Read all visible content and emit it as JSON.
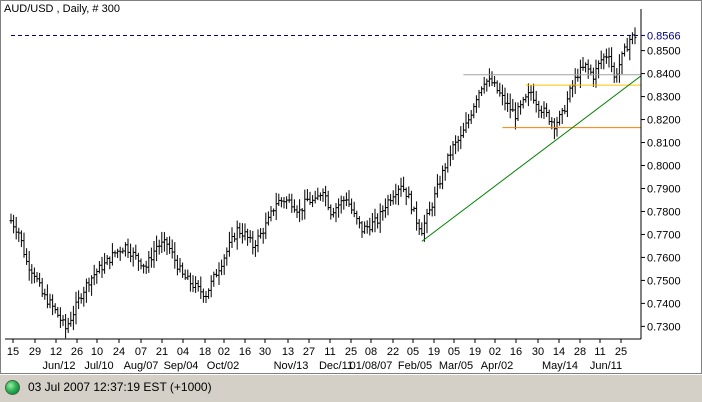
{
  "window": {
    "status_text": "03 Jul 2007 12:37:19  EST (+1000)"
  },
  "colors": {
    "background": "#ffffff",
    "bars": "#000000",
    "trendline": "#008000",
    "support": "#ff8000",
    "resistance": "#ffc000",
    "reference": "#a0a0a0",
    "price_line": "#000080",
    "last_price_text": "#000080"
  },
  "chart_data": {
    "type": "ohlc",
    "title": "AUD/USD , Daily, # 300",
    "last_price": "0.8566",
    "ylim": [
      0.7245,
      0.8655
    ],
    "y_ticks": [
      "0.8500",
      "0.8400",
      "0.8300",
      "0.8200",
      "0.8100",
      "0.8000",
      "0.7900",
      "0.7800",
      "0.7700",
      "0.7600",
      "0.7500",
      "0.7400",
      "0.7300"
    ],
    "x_day_labels": [
      "15",
      "29",
      "12",
      "26",
      "10",
      "24",
      "07",
      "21",
      "04",
      "18",
      "02",
      "16",
      "30",
      "13",
      "27",
      "11",
      "25",
      "08",
      "22",
      "05",
      "19",
      "05",
      "19",
      "02",
      "16",
      "30",
      "14",
      "28",
      "11",
      "25"
    ],
    "x_month_labels": [
      "Jun/12",
      "Jul/10",
      "Aug/07",
      "Sep/04",
      "Oct/02",
      "Nov/13",
      "Dec/11",
      "01/08/07",
      "Feb/05",
      "Mar/05",
      "Apr/02",
      "May/14",
      "Jun/11"
    ],
    "price_path": [
      [
        0,
        0.776
      ],
      [
        3,
        0.771
      ],
      [
        6,
        0.758
      ],
      [
        9,
        0.753
      ],
      [
        12,
        0.744
      ],
      [
        15,
        0.74
      ],
      [
        18,
        0.735
      ],
      [
        21,
        0.729
      ],
      [
        24,
        0.736
      ],
      [
        27,
        0.744
      ],
      [
        30,
        0.75
      ],
      [
        33,
        0.754
      ],
      [
        36,
        0.757
      ],
      [
        40,
        0.762
      ],
      [
        44,
        0.765
      ],
      [
        48,
        0.76
      ],
      [
        52,
        0.756
      ],
      [
        56,
        0.765
      ],
      [
        60,
        0.766
      ],
      [
        63,
        0.759
      ],
      [
        66,
        0.752
      ],
      [
        69,
        0.749
      ],
      [
        72,
        0.746
      ],
      [
        75,
        0.744
      ],
      [
        78,
        0.751
      ],
      [
        81,
        0.758
      ],
      [
        84,
        0.765
      ],
      [
        87,
        0.772
      ],
      [
        90,
        0.77
      ],
      [
        93,
        0.765
      ],
      [
        96,
        0.77
      ],
      [
        99,
        0.776
      ],
      [
        102,
        0.784
      ],
      [
        105,
        0.785
      ],
      [
        108,
        0.784
      ],
      [
        111,
        0.78
      ],
      [
        114,
        0.785
      ],
      [
        117,
        0.784
      ],
      [
        120,
        0.79
      ],
      [
        123,
        0.78
      ],
      [
        126,
        0.783
      ],
      [
        129,
        0.786
      ],
      [
        132,
        0.778
      ],
      [
        135,
        0.772
      ],
      [
        138,
        0.774
      ],
      [
        141,
        0.776
      ],
      [
        144,
        0.783
      ],
      [
        147,
        0.788
      ],
      [
        150,
        0.792
      ],
      [
        153,
        0.786
      ],
      [
        156,
        0.776
      ],
      [
        158,
        0.772
      ],
      [
        161,
        0.78
      ],
      [
        164,
        0.79
      ],
      [
        167,
        0.8
      ],
      [
        170,
        0.808
      ],
      [
        173,
        0.812
      ],
      [
        176,
        0.82
      ],
      [
        179,
        0.83
      ],
      [
        182,
        0.837
      ],
      [
        185,
        0.836
      ],
      [
        188,
        0.831
      ],
      [
        191,
        0.826
      ],
      [
        194,
        0.822
      ],
      [
        197,
        0.827
      ],
      [
        200,
        0.832
      ],
      [
        203,
        0.826
      ],
      [
        206,
        0.822
      ],
      [
        209,
        0.818
      ],
      [
        212,
        0.822
      ],
      [
        215,
        0.832
      ],
      [
        218,
        0.84
      ],
      [
        221,
        0.843
      ],
      [
        224,
        0.839
      ],
      [
        227,
        0.846
      ],
      [
        230,
        0.849
      ],
      [
        232,
        0.838
      ],
      [
        235,
        0.847
      ],
      [
        238,
        0.855
      ],
      [
        240,
        0.8566
      ]
    ],
    "bar_count": 241,
    "trendline": {
      "from": [
        158,
        0.767
      ],
      "to": [
        246,
        0.839
      ]
    },
    "support_line": {
      "from": [
        189,
        0.8165
      ],
      "to": [
        246,
        0.8165
      ],
      "value": 0.8165
    },
    "resistance_line": {
      "from": [
        198,
        0.835
      ],
      "to": [
        246,
        0.835
      ],
      "value": 0.835
    },
    "reference_line": {
      "from": [
        174,
        0.8395
      ],
      "to": [
        246,
        0.8395
      ],
      "value": 0.8395
    },
    "last_price_line": {
      "value": 0.8566
    },
    "grid": false
  }
}
